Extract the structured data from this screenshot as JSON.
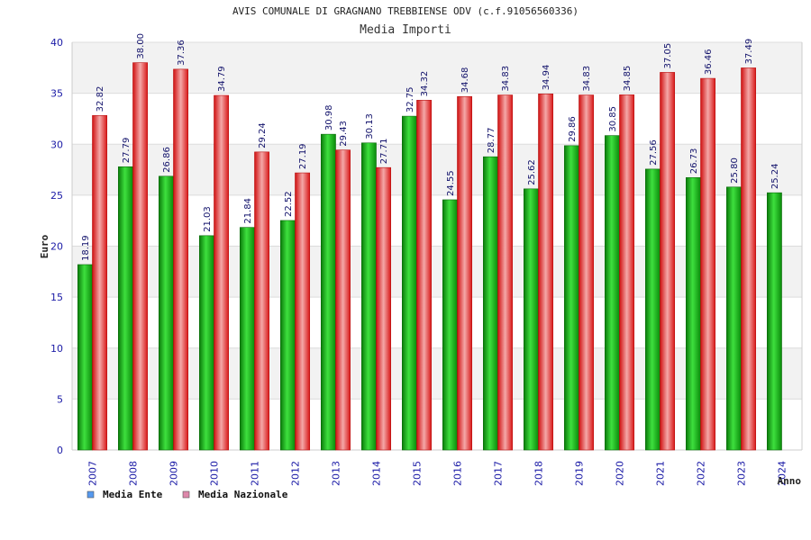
{
  "chart_data": {
    "type": "bar",
    "title": "AVIS COMUNALE DI GRAGNANO TREBBIENSE ODV (c.f.91056560336)",
    "subtitle": "Media Importi",
    "xlabel": "Anno",
    "ylabel": "Euro",
    "ylim": [
      0,
      40
    ],
    "yticks": [
      0,
      5,
      10,
      15,
      20,
      25,
      30,
      35,
      40
    ],
    "categories": [
      "2007",
      "2008",
      "2009",
      "2010",
      "2011",
      "2012",
      "2013",
      "2014",
      "2015",
      "2016",
      "2017",
      "2018",
      "2019",
      "2020",
      "2021",
      "2022",
      "2023",
      "2024"
    ],
    "series": [
      {
        "name": "Media Ente",
        "color": "#10b010",
        "legend_color": "#5599ee",
        "values": [
          18.19,
          27.79,
          26.86,
          21.03,
          21.84,
          22.52,
          30.98,
          30.13,
          32.75,
          24.55,
          28.77,
          25.62,
          29.86,
          30.85,
          27.56,
          26.73,
          25.8,
          25.24
        ],
        "labels": [
          "18.19",
          "27.79",
          "26.86",
          "21.03",
          "21.84",
          "22.52",
          "30.98",
          "30.13",
          "32.75",
          "24.55",
          "28.77",
          "25.62",
          "29.86",
          "30.85",
          "27.56",
          "26.73",
          "25.80",
          "25.24"
        ]
      },
      {
        "name": "Media Nazionale",
        "color": "#e82020",
        "legend_color": "#dd88aa",
        "values": [
          32.82,
          38.0,
          37.36,
          34.79,
          29.24,
          27.19,
          29.43,
          27.71,
          34.32,
          34.68,
          34.83,
          34.94,
          34.83,
          34.85,
          37.05,
          36.46,
          37.49,
          null
        ],
        "labels": [
          "32.82",
          "38.00",
          "37.36",
          "34.79",
          "29.24",
          "27.19",
          "29.43",
          "27.71",
          "34.32",
          "34.68",
          "34.83",
          "34.94",
          "34.83",
          "34.85",
          "37.05",
          "36.46",
          "37.49",
          ""
        ]
      }
    ],
    "grid": true,
    "legend_position": "bottom-left"
  }
}
